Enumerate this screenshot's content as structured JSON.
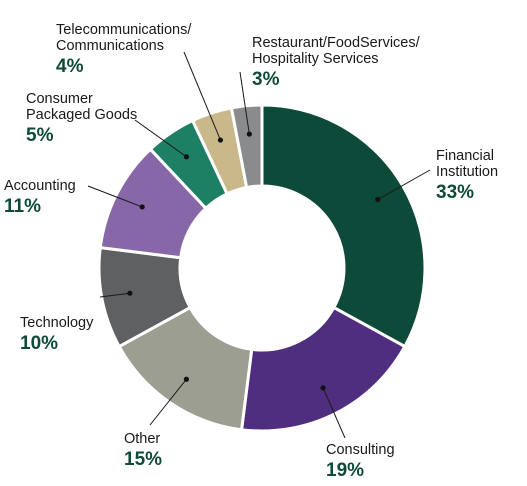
{
  "chart_data": {
    "type": "pie",
    "variant": "donut",
    "title": "",
    "legend": "none",
    "slices": [
      {
        "label": [
          "Financial",
          "Institution"
        ],
        "value": 33,
        "value_label": "33%",
        "color": "#0d4a3a"
      },
      {
        "label": [
          "Consulting"
        ],
        "value": 19,
        "value_label": "19%",
        "color": "#4f2d7f"
      },
      {
        "label": [
          "Other"
        ],
        "value": 15,
        "value_label": "15%",
        "color": "#9c9e92"
      },
      {
        "label": [
          "Technology"
        ],
        "value": 10,
        "value_label": "10%",
        "color": "#5e6062"
      },
      {
        "label": [
          "Accounting"
        ],
        "value": 11,
        "value_label": "11%",
        "color": "#8867a8"
      },
      {
        "label": [
          "Consumer",
          "Packaged Goods"
        ],
        "value": 5,
        "value_label": "5%",
        "color": "#1d7f63"
      },
      {
        "label": [
          "Telecommunications/",
          "Communications"
        ],
        "value": 4,
        "value_label": "4%",
        "color": "#c8b88a"
      },
      {
        "label": [
          "Restaurant/FoodServices/",
          "Hospitality Services"
        ],
        "value": 3,
        "value_label": "3%",
        "color": "#8a8b8d"
      }
    ]
  }
}
